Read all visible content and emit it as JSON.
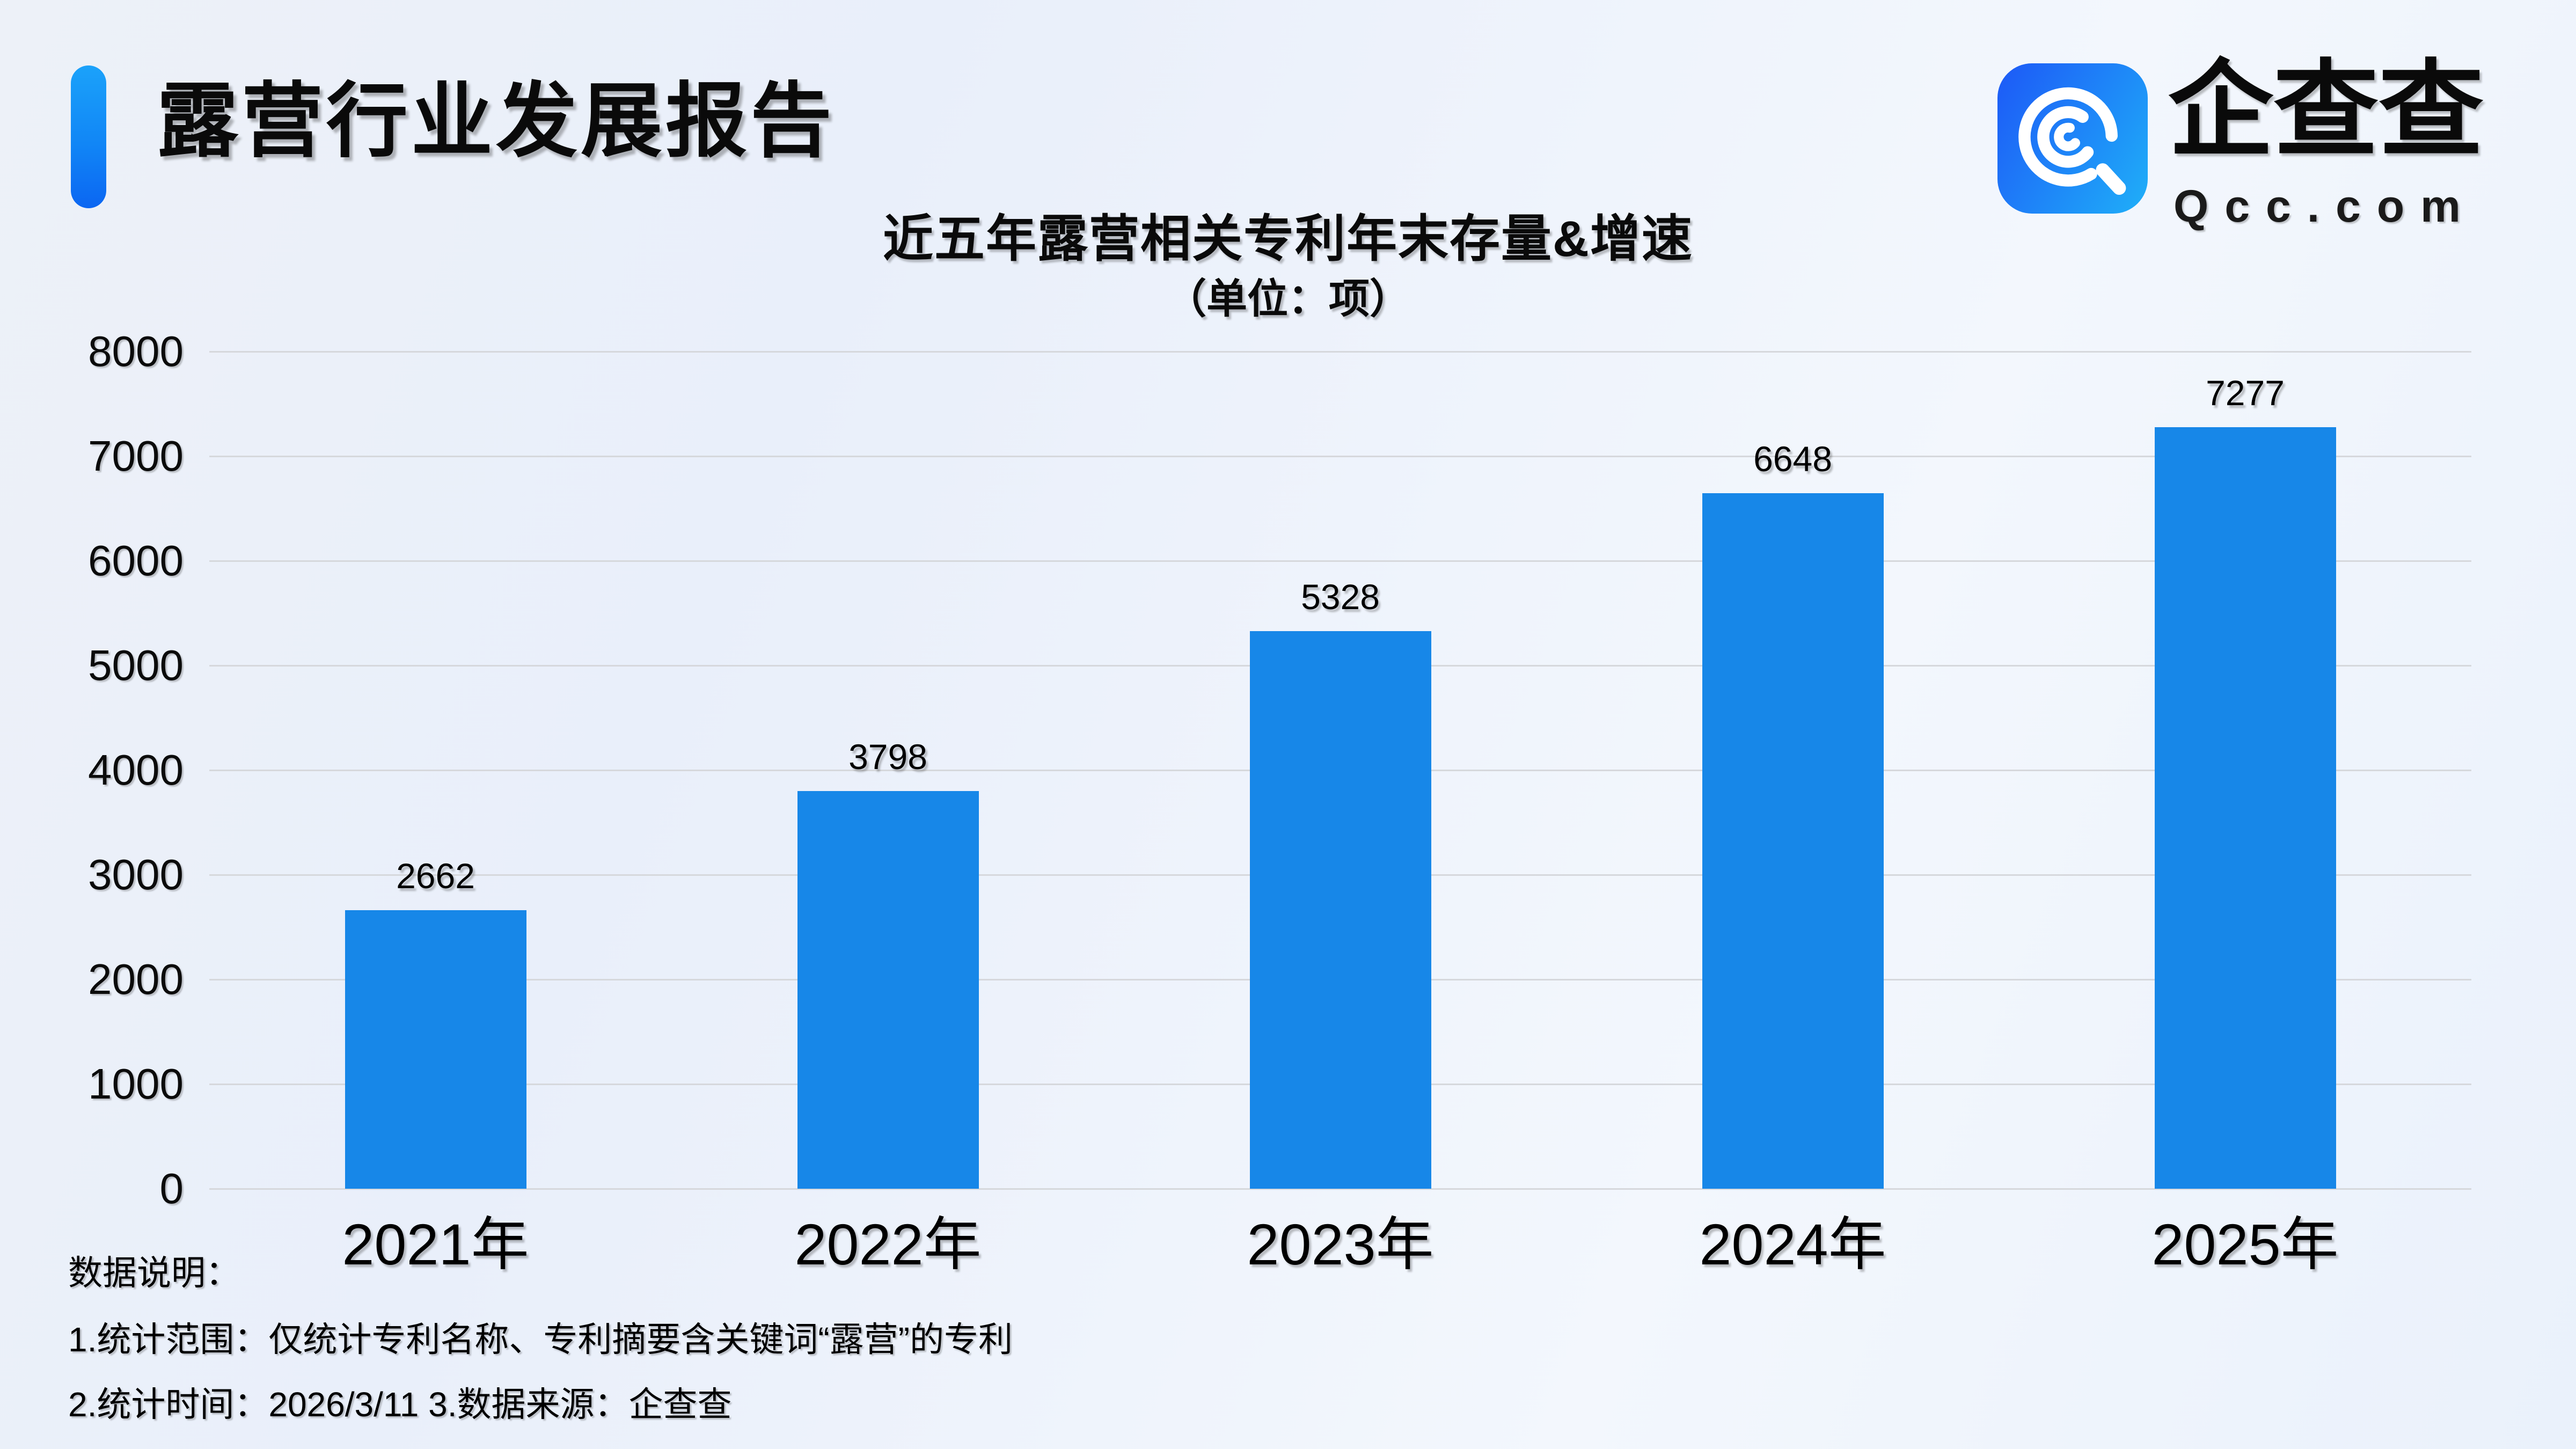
{
  "header": {
    "report_title": "露营行业发展报告"
  },
  "logo": {
    "brand_name": "企查查",
    "domain": "Qcc.com",
    "icon": "qcc-magnifier-spiral-icon",
    "icon_gradient": [
      "#1D5FF7",
      "#1FA9F8"
    ]
  },
  "chart_data": {
    "type": "bar",
    "title": "近五年露营相关专利年末存量&增速",
    "subtitle": "（单位：项）",
    "unit": "项",
    "categories": [
      "2021年",
      "2022年",
      "2023年",
      "2024年",
      "2025年"
    ],
    "values": [
      2662,
      3798,
      5328,
      6648,
      7277
    ],
    "xlabel": "",
    "ylabel": "",
    "ylim": [
      0,
      8000
    ],
    "ytick_step": 1000,
    "yticks": [
      0,
      1000,
      2000,
      3000,
      4000,
      5000,
      6000,
      7000,
      8000
    ],
    "grid": true,
    "legend": "none",
    "bar_color": "#1787E8",
    "gridline_color": "#D6D8DC",
    "value_labels_shown": true
  },
  "footer": {
    "heading": "数据说明：",
    "line1": "1.统计范围：仅统计专利名称、专利摘要含关键词“露营”的专利",
    "line2": "2.统计时间：2026/3/11  3.数据来源：企查查"
  },
  "colors": {
    "background_start": "#EDF1F8",
    "background_end": "#EAF1FB",
    "accent_bar_top": "#1BA2FA",
    "accent_bar_bottom": "#0B66F2",
    "text": "#0A0A0A"
  }
}
